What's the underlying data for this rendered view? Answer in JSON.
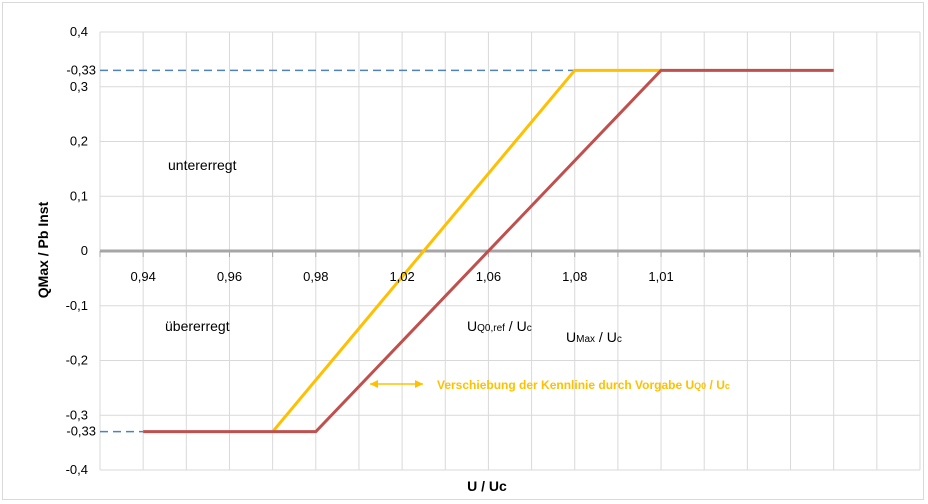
{
  "chart_data": {
    "type": "line",
    "title": "",
    "xlabel": "U / Uc",
    "ylabel": "QMax / Pb Inst",
    "x_tick_labels": [
      "0,94",
      "0,96",
      "0,98",
      "1,02",
      "1,06",
      "1,08",
      "1,01"
    ],
    "y_tick_labels": [
      "0,4",
      "0,3",
      "0,2",
      "0,1",
      "0",
      "-0,1",
      "-0,2",
      "-0,3",
      "-0,4"
    ],
    "extra_y_labels": [
      "-0,33",
      "-0,33"
    ],
    "xlim": [
      0.93,
      1.12
    ],
    "ylim": [
      -0.4,
      0.4
    ],
    "grid": true,
    "series": [
      {
        "color": "#ffc000",
        "x": [
          0.97,
          1.04,
          1.06
        ],
        "y": [
          -0.33,
          0.33,
          0.33
        ]
      },
      {
        "color": "#c0504d",
        "x": [
          0.94,
          0.98,
          1.06,
          1.1
        ],
        "y": [
          -0.33,
          -0.33,
          0.33,
          0.33
        ]
      }
    ],
    "reference_lines": [
      {
        "color": "#4f81bd",
        "style": "dashed",
        "y": 0.33,
        "x_from": 0.93,
        "x_to": 1.04
      },
      {
        "color": "#4f81bd",
        "style": "dashed",
        "y": -0.33,
        "x_from": 0.93,
        "x_to": 0.94
      }
    ],
    "annotations": {
      "untererregt": "untererregt",
      "uebererregt": "übererregt",
      "uq0_main": "U",
      "uq0_sub": "Q0,ref",
      "uq0_sep": " / U",
      "uq0_c": "c",
      "umax_main": "U",
      "umax_sub": "Max",
      "umax_sep": " / U",
      "umax_c": "c",
      "shift_text": "Verschiebung der Kennlinie durch Vorgabe U",
      "shift_sub": "Q0",
      "shift_sep": " / U",
      "shift_c": "c"
    }
  }
}
